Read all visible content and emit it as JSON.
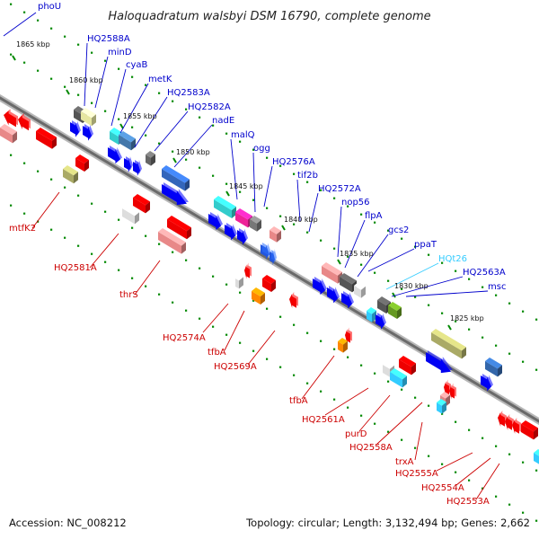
{
  "title": "Haloquadratum walsbyi DSM 16790, complete genome",
  "footer": {
    "accession": "Accession: NC_008212",
    "summary": "Topology: circular; Length: 3,132,494 bp; Genes: 2,662"
  },
  "colors": {
    "forward_label": "#0000cc",
    "reverse_label": "#cc0000",
    "rna_label": "#33ccff",
    "backbone": "#7a7a7a",
    "tick": "#008800"
  },
  "ticks": [
    "1865 kbp",
    "1860 kbp",
    "1855 kbp",
    "1850 kbp",
    "1845 kbp",
    "1840 kbp",
    "1835 kbp",
    "1830 kbp",
    "1825 kbp"
  ],
  "forward_genes": [
    "phoU",
    "HQ2588A",
    "minD",
    "cyaB",
    "metK",
    "HQ2583A",
    "HQ2582A",
    "nadE",
    "malQ",
    "ogg",
    "HQ2576A",
    "tif2b",
    "HQ2572A",
    "nop56",
    "flpA",
    "gcs2",
    "ppaT",
    "HQt26",
    "HQ2563A",
    "msc"
  ],
  "reverse_genes": [
    "mtfK2",
    "HQ2581A",
    "thrS",
    "HQ2574A",
    "tfbA",
    "HQ2569A",
    "tfbA",
    "HQ2561A",
    "purD",
    "HQ2558A",
    "trxA",
    "HQ2555A",
    "HQ2554A",
    "HQ2553A"
  ]
}
